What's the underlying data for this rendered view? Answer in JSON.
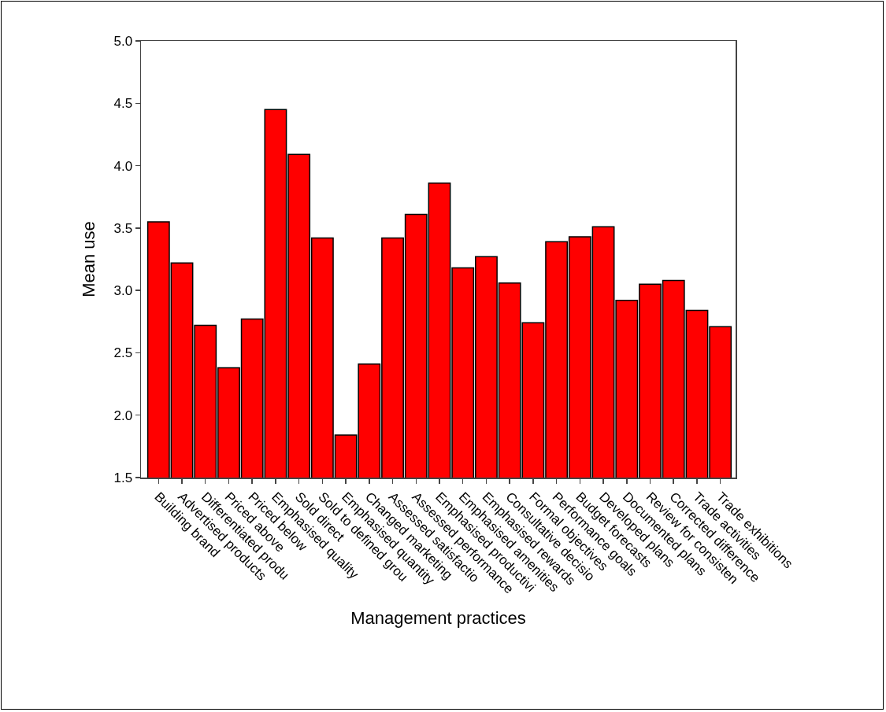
{
  "chart_data": {
    "type": "bar",
    "xlabel": "Management practices",
    "ylabel": "Mean use",
    "categories": [
      "Building brand",
      "Advertised products",
      "Differentiated produ",
      "Priced above",
      "Priced below",
      "Emphasised quality",
      "Sold direct",
      "Sold to defined grou",
      "Emphasised quantity",
      "Changed marketing",
      "Assessed satisfactio",
      "Assessed performance",
      "Emphasised productivi",
      "Emphasised amenities",
      "Emphasised rewards",
      "Consultative decisio",
      "Formal objectives",
      "Performance goals",
      "Budget forecasts",
      "Developed plans",
      "Documented plans",
      "Review for consisten",
      "Corrected difference",
      "Trade activities",
      "Trade exhibitions"
    ],
    "values": [
      3.55,
      3.22,
      2.72,
      2.38,
      2.77,
      4.45,
      4.09,
      3.42,
      1.84,
      2.41,
      3.42,
      3.61,
      3.86,
      3.18,
      3.27,
      3.06,
      2.74,
      3.39,
      3.43,
      3.51,
      2.92,
      3.05,
      3.08,
      2.84,
      2.71
    ],
    "color": "#ff0000",
    "ylim": [
      1.5,
      5.0
    ],
    "yticks": [
      {
        "value": 1.5,
        "label": "1.5"
      },
      {
        "value": 2,
        "label": "2.0"
      },
      {
        "value": 2.5,
        "label": "2.5"
      },
      {
        "value": 3,
        "label": "3.0"
      },
      {
        "value": 3.5,
        "label": "3.5"
      },
      {
        "value": 4,
        "label": "4.0"
      },
      {
        "value": 4.5,
        "label": "4.5"
      },
      {
        "value": 5,
        "label": "5.0"
      }
    ],
    "grid": false,
    "legend": false
  }
}
